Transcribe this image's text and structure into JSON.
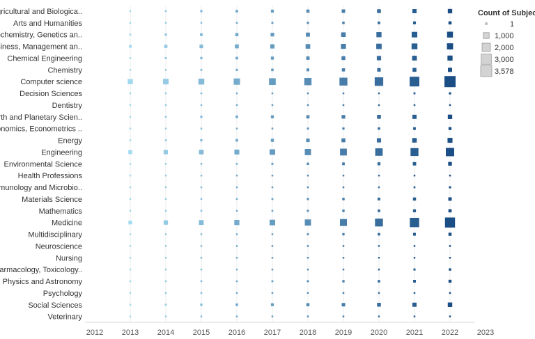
{
  "chart_data": {
    "type": "scatter",
    "title": "",
    "xlabel": "",
    "ylabel": "",
    "x_ticks": [
      "2012",
      "2013",
      "2014",
      "2015",
      "2016",
      "2017",
      "2018",
      "2019",
      "2020",
      "2021",
      "2022",
      "2023"
    ],
    "x_years": [
      2013,
      2014,
      2015,
      2016,
      2017,
      2018,
      2019,
      2020,
      2021,
      2022
    ],
    "categories": [
      "Agricultural and Biologica..",
      "Arts and Humanities",
      "Biochemistry, Genetics an..",
      "Business, Management an..",
      "Chemical Engineering",
      "Chemistry",
      "Computer science",
      "Decision Sciences",
      "Dentistry",
      "Earth and Planetary Scien..",
      "Economics, Econometrics ..",
      "Energy",
      "Engineering",
      "Environmental Science",
      "Health Professions",
      "Immunology and Microbio..",
      "Materials Science",
      "Mathematics",
      "Medicine",
      "Multidisciplinary",
      "Neuroscience",
      "Nursing",
      "Pharmacology, Toxicology..",
      "Physics and Astronomy",
      "Psychology",
      "Social Sciences",
      "Veterinary"
    ],
    "values": [
      [
        60,
        100,
        150,
        200,
        250,
        300,
        350,
        420,
        500,
        560
      ],
      [
        40,
        60,
        80,
        100,
        120,
        140,
        170,
        200,
        240,
        280
      ],
      [
        110,
        160,
        220,
        300,
        380,
        480,
        600,
        760,
        900,
        1000
      ],
      [
        220,
        300,
        380,
        450,
        520,
        620,
        720,
        850,
        980,
        1100
      ],
      [
        90,
        120,
        160,
        200,
        260,
        330,
        420,
        540,
        650,
        750
      ],
      [
        60,
        80,
        110,
        140,
        180,
        230,
        290,
        360,
        430,
        500
      ],
      [
        780,
        900,
        1000,
        1150,
        1300,
        1500,
        1800,
        2100,
        2700,
        3578
      ],
      [
        15,
        20,
        25,
        30,
        40,
        50,
        65,
        85,
        110,
        140
      ],
      [
        2,
        3,
        3,
        4,
        5,
        6,
        8,
        10,
        12,
        15
      ],
      [
        60,
        100,
        150,
        200,
        260,
        310,
        380,
        440,
        500,
        560
      ],
      [
        25,
        35,
        50,
        70,
        90,
        110,
        140,
        170,
        210,
        250
      ],
      [
        90,
        110,
        150,
        200,
        280,
        360,
        440,
        520,
        600,
        700
      ],
      [
        450,
        550,
        620,
        700,
        900,
        1100,
        1350,
        1600,
        1800,
        2000
      ],
      [
        40,
        55,
        70,
        90,
        120,
        160,
        210,
        260,
        330,
        400
      ],
      [
        3,
        4,
        5,
        6,
        7,
        8,
        10,
        12,
        14,
        16
      ],
      [
        10,
        14,
        20,
        28,
        38,
        50,
        65,
        80,
        100,
        130
      ],
      [
        30,
        45,
        60,
        80,
        100,
        130,
        170,
        220,
        280,
        340
      ],
      [
        25,
        40,
        55,
        70,
        90,
        120,
        160,
        200,
        250,
        300
      ],
      [
        400,
        550,
        650,
        750,
        900,
        1100,
        1400,
        1800,
        2500,
        2900
      ],
      [
        20,
        30,
        45,
        60,
        80,
        110,
        150,
        190,
        230,
        280
      ],
      [
        6,
        8,
        10,
        12,
        15,
        20,
        26,
        32,
        40,
        48
      ],
      [
        4,
        5,
        6,
        8,
        10,
        12,
        15,
        20,
        25,
        30
      ],
      [
        15,
        20,
        30,
        40,
        50,
        60,
        80,
        100,
        130,
        160
      ],
      [
        30,
        45,
        60,
        80,
        100,
        120,
        150,
        180,
        220,
        260
      ],
      [
        5,
        6,
        8,
        10,
        12,
        15,
        20,
        25,
        30,
        40
      ],
      [
        70,
        110,
        150,
        190,
        240,
        290,
        350,
        420,
        500,
        580
      ],
      [
        2,
        2,
        3,
        3,
        4,
        5,
        6,
        7,
        8,
        10
      ]
    ],
    "size_legend": {
      "title": "Count of Subject A",
      "entries": [
        {
          "label": "1",
          "value": 1
        },
        {
          "label": "1,000",
          "value": 1000
        },
        {
          "label": "2,000",
          "value": 2000
        },
        {
          "label": "3,000",
          "value": 3000
        },
        {
          "label": "3,578",
          "value": 3578
        }
      ]
    },
    "color_by": "year",
    "color_range": [
      "#a3daf0",
      "#1a4e85"
    ]
  }
}
